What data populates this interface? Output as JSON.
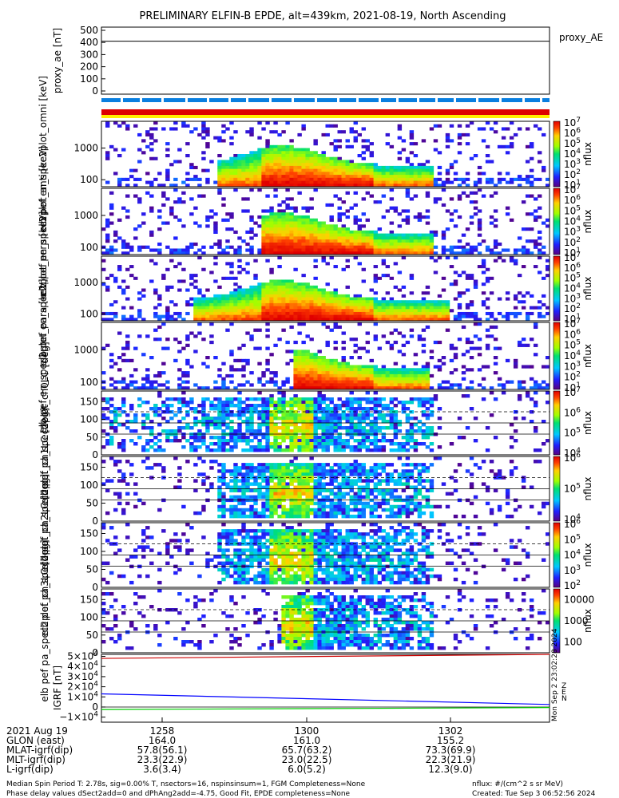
{
  "chart_data": {
    "type": "heatmap",
    "title": "PRELIMINARY ELFIN-B EPDE, alt=439km, 2021-08-19, North Ascending",
    "panels": [
      {
        "name": "proxy_ae",
        "type": "line",
        "ylabel": "proxy_ae [nT]",
        "ylim": [
          0,
          500
        ],
        "yticks": [
          0,
          100,
          200,
          300,
          400,
          500
        ],
        "series": [
          {
            "name": "proxy_AE",
            "value": 410
          }
        ]
      },
      {
        "name": "spec_en_1",
        "type": "heatmap",
        "ylabel": "elb pef en_spec2plot_omni [keV]",
        "ylog": true,
        "yticks": [
          100,
          1000
        ],
        "cbar_label": "nflux",
        "cbar_range_exp": [
          1,
          7
        ]
      },
      {
        "name": "spec_en_2",
        "type": "heatmap",
        "ylabel": "elb pef en_spec2plot_anti [keV]",
        "ylog": true,
        "yticks": [
          100,
          1000
        ],
        "cbar_label": "nflux",
        "cbar_range_exp": [
          1,
          7
        ]
      },
      {
        "name": "spec_en_3",
        "type": "heatmap",
        "ylabel": "elb pef en_spec2plot_perp [keV]",
        "ylog": true,
        "yticks": [
          100,
          1000
        ],
        "cbar_label": "nflux",
        "cbar_range_exp": [
          1,
          7
        ]
      },
      {
        "name": "spec_en_4",
        "type": "heatmap",
        "ylabel": "elb pef en_spec2plot_para [keV]",
        "ylog": true,
        "yticks": [
          100,
          1000
        ],
        "cbar_label": "nflux",
        "cbar_range_exp": [
          1,
          7
        ]
      },
      {
        "name": "pa_ch0",
        "type": "heatmap",
        "ylabel": "elb pef pa_spec2plot_ch0LC [deg]",
        "yticks": [
          0,
          50,
          100,
          150
        ],
        "ylim": [
          0,
          180
        ],
        "cbar_label": "nflux",
        "cbar_range_exp": [
          4,
          7
        ]
      },
      {
        "name": "pa_ch1",
        "type": "heatmap",
        "ylabel": "elb pef pa_spec2plot_ch1LC [deg]",
        "yticks": [
          0,
          50,
          100,
          150
        ],
        "ylim": [
          0,
          180
        ],
        "cbar_label": "nflux",
        "cbar_range_exp": [
          4,
          6
        ]
      },
      {
        "name": "pa_ch2",
        "type": "heatmap",
        "ylabel": "elb pef pa_spec2plot_ch2LC [deg]",
        "yticks": [
          0,
          50,
          100,
          150
        ],
        "ylim": [
          0,
          180
        ],
        "cbar_label": "nflux",
        "cbar_range_exp": [
          2,
          6
        ]
      },
      {
        "name": "pa_ch3",
        "type": "heatmap",
        "ylabel": "elb pef pa_spec2plot_ch3LC [deg]",
        "yticks": [
          0,
          50,
          100,
          150
        ],
        "ylim": [
          0,
          180
        ],
        "cbar_label": "nflux",
        "cbar_ticks": [
          100,
          1000,
          10000
        ]
      },
      {
        "name": "igrf",
        "type": "line",
        "ylabel": "IGRF [nT]",
        "yticks": [
          -10000,
          0,
          10000,
          20000,
          30000,
          40000,
          50000
        ],
        "legend": [
          "N",
          "E",
          "Z"
        ],
        "side_text": "Mon Sep 2 23:02:28 2024",
        "series": [
          {
            "name": "N",
            "color": "#0000ff",
            "values": [
              13000,
              2500
            ]
          },
          {
            "name": "E",
            "color": "#00cc00",
            "values": [
              -2500,
              -500
            ]
          },
          {
            "name": "Z",
            "color": "#cc0000",
            "values": [
              48000,
              52000
            ]
          }
        ]
      }
    ],
    "x_ticks": [
      "1258",
      "1300",
      "1302"
    ],
    "axis_table": {
      "row_labels": [
        "2021 Aug 19",
        "GLON (east)",
        "MLAT-igrf(dip)",
        "MLT-igrf(dip)",
        "L-igrf(dip)"
      ],
      "columns": [
        [
          "1258",
          "164.0",
          "57.8(56.1)",
          "23.3(22.9)",
          "3.6(3.4)"
        ],
        [
          "1300",
          "161.0",
          "65.7(63.2)",
          "23.0(22.5)",
          "6.0(5.2)"
        ],
        [
          "1302",
          "155.2",
          "73.3(69.9)",
          "22.3(21.9)",
          "12.3(9.0)"
        ]
      ]
    }
  },
  "footer": {
    "line1_left": "Median Spin Period T: 2.78s, sig=0.00% T, nsectors=16, nspinsinsum=1, FGM Completeness=None",
    "line2_left": "Phase delay values dSect2add=0 and dPhAng2add=-4.75, Good Fit, EPDE completeness=None",
    "line1_right": "nflux: #/(cm^2 s sr MeV)",
    "line2_right": "Created: Tue Sep  3 06:52:56 2024"
  },
  "colors": {
    "frame": "#000000",
    "bar_blue": "#0a7fe0",
    "bar_red": "#dd0000",
    "bar_yellow": "#ffee00"
  }
}
